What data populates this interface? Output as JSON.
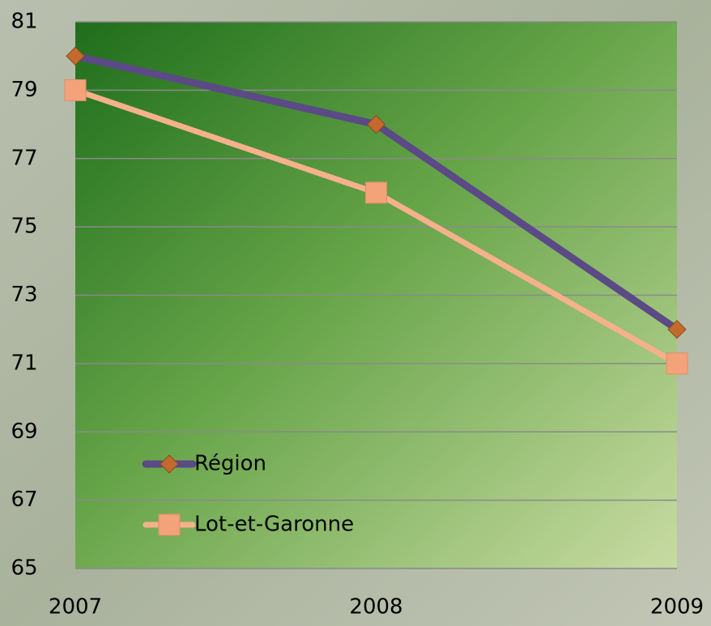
{
  "chart_data": {
    "type": "line",
    "categories": [
      "2007",
      "2008",
      "2009"
    ],
    "series": [
      {
        "name": "Région",
        "color": "#5b4a86",
        "marker_color": "#c46a2c",
        "marker": "diamond",
        "values": [
          80,
          78,
          72
        ]
      },
      {
        "name": "Lot-et-Garonne",
        "color": "#f6b18c",
        "marker_color": "#f3a27a",
        "marker": "square",
        "values": [
          79,
          76,
          71
        ]
      }
    ],
    "ylim": [
      65,
      81
    ],
    "yticks": [
      65,
      67,
      69,
      71,
      73,
      75,
      77,
      79,
      81
    ],
    "grid": true
  }
}
